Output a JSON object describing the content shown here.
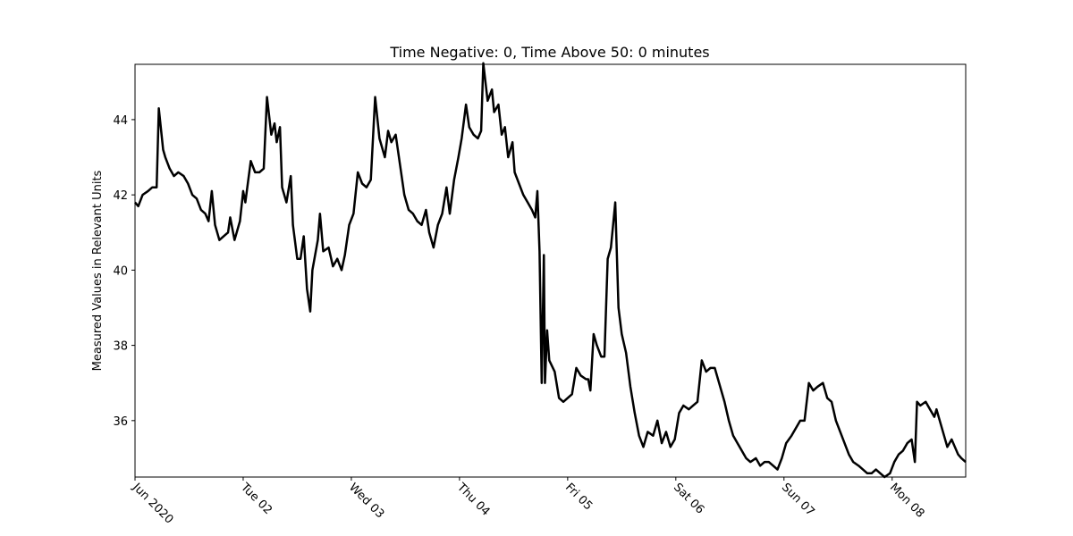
{
  "chart_data": {
    "type": "line",
    "title": "Time Negative: 0, Time Above 50: 0 minutes",
    "y_label": "Measured Values in Relevant Units",
    "x": [
      1.0,
      1.03,
      1.07,
      1.12,
      1.16,
      1.2,
      1.22,
      1.26,
      1.28,
      1.32,
      1.36,
      1.4,
      1.45,
      1.49,
      1.53,
      1.57,
      1.61,
      1.65,
      1.68,
      1.71,
      1.74,
      1.78,
      1.82,
      1.86,
      1.88,
      1.92,
      1.97,
      2.0,
      2.02,
      2.07,
      2.11,
      2.15,
      2.19,
      2.22,
      2.26,
      2.29,
      2.31,
      2.34,
      2.36,
      2.4,
      2.44,
      2.46,
      2.5,
      2.53,
      2.56,
      2.59,
      2.62,
      2.64,
      2.69,
      2.71,
      2.74,
      2.79,
      2.83,
      2.87,
      2.91,
      2.94,
      2.98,
      3.02,
      3.06,
      3.1,
      3.14,
      3.18,
      3.22,
      3.26,
      3.31,
      3.34,
      3.37,
      3.41,
      3.45,
      3.49,
      3.53,
      3.57,
      3.61,
      3.65,
      3.69,
      3.72,
      3.76,
      3.8,
      3.84,
      3.88,
      3.91,
      3.95,
      3.99,
      4.02,
      4.06,
      4.09,
      4.13,
      4.17,
      4.2,
      4.22,
      4.26,
      4.3,
      4.32,
      4.36,
      4.39,
      4.42,
      4.45,
      4.49,
      4.51,
      4.55,
      4.59,
      4.63,
      4.67,
      4.7,
      4.72,
      4.74,
      4.76,
      4.78,
      4.79,
      4.81,
      4.83,
      4.88,
      4.92,
      4.96,
      5.0,
      5.04,
      5.08,
      5.12,
      5.17,
      5.19,
      5.21,
      5.24,
      5.27,
      5.31,
      5.34,
      5.37,
      5.4,
      5.44,
      5.47,
      5.5,
      5.54,
      5.58,
      5.62,
      5.66,
      5.7,
      5.74,
      5.79,
      5.83,
      5.87,
      5.91,
      5.95,
      5.99,
      6.03,
      6.07,
      6.12,
      6.16,
      6.2,
      6.24,
      6.28,
      6.32,
      6.36,
      6.4,
      6.45,
      6.49,
      6.53,
      6.57,
      6.61,
      6.65,
      6.69,
      6.74,
      6.78,
      6.82,
      6.86,
      6.9,
      6.94,
      6.98,
      7.02,
      7.07,
      7.11,
      7.15,
      7.19,
      7.23,
      7.27,
      7.31,
      7.36,
      7.4,
      7.44,
      7.48,
      7.52,
      7.56,
      7.6,
      7.64,
      7.69,
      7.73,
      7.77,
      7.81,
      7.85,
      7.89,
      7.93,
      7.98,
      8.02,
      8.06,
      8.1,
      8.14,
      8.18,
      8.21,
      8.23,
      8.26,
      8.31,
      8.35,
      8.39,
      8.41,
      8.45,
      8.48,
      8.51,
      8.55,
      8.58,
      8.61,
      8.64,
      8.68
    ],
    "series": [
      {
        "color": "#000000",
        "values": [
          41.8,
          41.7,
          42.0,
          42.1,
          42.2,
          42.2,
          44.3,
          43.2,
          43.0,
          42.7,
          42.5,
          42.6,
          42.5,
          42.3,
          42.0,
          41.9,
          41.6,
          41.5,
          41.3,
          42.1,
          41.2,
          40.8,
          40.9,
          41.0,
          41.4,
          40.8,
          41.3,
          42.1,
          41.8,
          42.9,
          42.6,
          42.6,
          42.7,
          44.6,
          43.6,
          43.9,
          43.4,
          43.8,
          42.2,
          41.8,
          42.5,
          41.2,
          40.3,
          40.3,
          40.9,
          39.5,
          38.9,
          40.0,
          40.8,
          41.5,
          40.5,
          40.6,
          40.1,
          40.3,
          40.0,
          40.4,
          41.2,
          41.5,
          42.6,
          42.3,
          42.2,
          42.4,
          44.6,
          43.5,
          43.0,
          43.7,
          43.4,
          43.6,
          42.8,
          42.0,
          41.6,
          41.5,
          41.3,
          41.2,
          41.6,
          41.0,
          40.6,
          41.2,
          41.5,
          42.2,
          41.5,
          42.4,
          43.0,
          43.5,
          44.4,
          43.8,
          43.6,
          43.5,
          43.7,
          45.5,
          44.5,
          44.8,
          44.2,
          44.4,
          43.6,
          43.8,
          43.0,
          43.4,
          42.6,
          42.3,
          42.0,
          41.8,
          41.6,
          41.4,
          42.1,
          40.5,
          37.0,
          40.4,
          37.0,
          38.4,
          37.6,
          37.3,
          36.6,
          36.5,
          36.6,
          36.7,
          37.4,
          37.2,
          37.1,
          37.1,
          36.8,
          38.3,
          38.0,
          37.7,
          37.7,
          40.3,
          40.6,
          41.8,
          39.0,
          38.3,
          37.8,
          36.9,
          36.2,
          35.6,
          35.3,
          35.7,
          35.6,
          36.0,
          35.4,
          35.7,
          35.3,
          35.5,
          36.2,
          36.4,
          36.3,
          36.4,
          36.5,
          37.6,
          37.3,
          37.4,
          37.4,
          37.0,
          36.5,
          36.0,
          35.6,
          35.4,
          35.2,
          35.0,
          34.9,
          35.0,
          34.8,
          34.9,
          34.9,
          34.8,
          34.7,
          35.0,
          35.4,
          35.6,
          35.8,
          36.0,
          36.0,
          37.0,
          36.8,
          36.9,
          37.0,
          36.6,
          36.5,
          36.0,
          35.7,
          35.4,
          35.1,
          34.9,
          34.8,
          34.7,
          34.6,
          34.6,
          34.7,
          34.6,
          34.5,
          34.6,
          34.9,
          35.1,
          35.2,
          35.4,
          35.5,
          34.9,
          36.5,
          36.4,
          36.5,
          36.3,
          36.1,
          36.3,
          35.9,
          35.6,
          35.3,
          35.5,
          35.3,
          35.1,
          35.0,
          34.9
        ]
      }
    ],
    "xlim": [
      1,
      8.68
    ],
    "xticks": [
      {
        "value": 1,
        "label": "Jun 2020"
      },
      {
        "value": 2,
        "label": "Tue 02"
      },
      {
        "value": 3,
        "label": "Wed 03"
      },
      {
        "value": 4,
        "label": "Thu 04"
      },
      {
        "value": 5,
        "label": "Fri 05"
      },
      {
        "value": 6,
        "label": "Sat 06"
      },
      {
        "value": 7,
        "label": "Sun 07"
      },
      {
        "value": 8,
        "label": "Mon 08"
      }
    ],
    "ylim": [
      34.5,
      45.47
    ],
    "yticks": [
      36,
      38,
      40,
      42,
      44
    ],
    "grid": false
  }
}
